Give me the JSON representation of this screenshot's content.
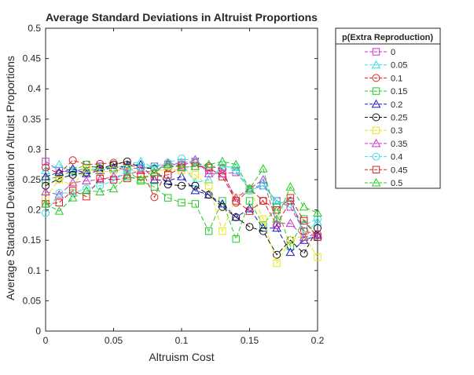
{
  "chart_data": {
    "type": "line",
    "title": "Average Standard Deviations in Altruist Proportions",
    "xlabel": "Altruism Cost",
    "ylabel": "Average Standard Deviation of Altruist Proportions",
    "xlim": [
      0,
      0.2
    ],
    "ylim": [
      0,
      0.5
    ],
    "xticks": [
      "0",
      "0.05",
      "0.1",
      "0.15",
      "0.2"
    ],
    "yticks": [
      "0",
      "0.05",
      "0.1",
      "0.15",
      "0.2",
      "0.25",
      "0.3",
      "0.35",
      "0.4",
      "0.45",
      "0.5"
    ],
    "grid": false,
    "legend": {
      "title": "p(Extra Reproduction)",
      "placement": "outside-right"
    },
    "x": [
      0,
      0.01,
      0.02,
      0.03,
      0.04,
      0.05,
      0.06,
      0.07,
      0.08,
      0.09,
      0.1,
      0.11,
      0.12,
      0.13,
      0.14,
      0.15,
      0.16,
      0.17,
      0.18,
      0.19,
      0.2
    ],
    "series": [
      {
        "name": "0",
        "color": "#cc33cc",
        "marker": "square",
        "values": [
          0.28,
          0.265,
          0.262,
          0.27,
          0.272,
          0.268,
          0.27,
          0.268,
          0.272,
          0.275,
          0.278,
          0.28,
          0.265,
          0.26,
          0.262,
          0.235,
          0.24,
          0.215,
          0.205,
          0.165,
          0.155
        ]
      },
      {
        "name": "0.05",
        "color": "#33e0e0",
        "marker": "triangle",
        "values": [
          0.265,
          0.275,
          0.262,
          0.265,
          0.27,
          0.268,
          0.275,
          0.28,
          0.27,
          0.272,
          0.278,
          0.245,
          0.25,
          0.272,
          0.27,
          0.232,
          0.245,
          0.21,
          0.215,
          0.16,
          0.18
        ]
      },
      {
        "name": "0.1",
        "color": "#dd2222",
        "marker": "circle",
        "values": [
          0.27,
          0.26,
          0.282,
          0.275,
          0.276,
          0.278,
          0.275,
          0.27,
          0.221,
          0.27,
          0.275,
          0.278,
          0.272,
          0.268,
          0.212,
          0.235,
          0.215,
          0.175,
          0.215,
          0.165,
          0.16
        ]
      },
      {
        "name": "0.15",
        "color": "#22cc22",
        "marker": "square",
        "values": [
          0.25,
          0.255,
          0.265,
          0.275,
          0.268,
          0.27,
          0.265,
          0.248,
          0.238,
          0.22,
          0.212,
          0.21,
          0.165,
          0.215,
          0.152,
          0.215,
          0.175,
          0.205,
          0.14,
          0.185,
          0.155
        ]
      },
      {
        "name": "0.2",
        "color": "#1a1acc",
        "marker": "triangle",
        "values": [
          0.255,
          0.262,
          0.268,
          0.26,
          0.265,
          0.27,
          0.272,
          0.275,
          0.25,
          0.248,
          0.255,
          0.232,
          0.225,
          0.21,
          0.188,
          0.202,
          0.17,
          0.17,
          0.13,
          0.15,
          0.158
        ]
      },
      {
        "name": "0.25",
        "color": "#111111",
        "marker": "circle",
        "values": [
          0.24,
          0.252,
          0.258,
          0.262,
          0.268,
          0.275,
          0.28,
          0.27,
          0.268,
          0.242,
          0.24,
          0.24,
          0.225,
          0.205,
          0.188,
          0.172,
          0.165,
          0.126,
          0.15,
          0.128,
          0.17
        ]
      },
      {
        "name": "0.3",
        "color": "#e6e619",
        "marker": "square",
        "values": [
          0.22,
          0.25,
          0.24,
          0.268,
          0.262,
          0.265,
          0.268,
          0.26,
          0.262,
          0.268,
          0.265,
          0.258,
          0.24,
          0.165,
          0.22,
          0.235,
          0.185,
          0.112,
          0.15,
          0.158,
          0.122
        ]
      },
      {
        "name": "0.35",
        "color": "#cc33cc",
        "marker": "triangle",
        "values": [
          0.23,
          0.225,
          0.245,
          0.248,
          0.25,
          0.255,
          0.258,
          0.265,
          0.262,
          0.278,
          0.272,
          0.283,
          0.26,
          0.26,
          0.22,
          0.235,
          0.25,
          0.178,
          0.178,
          0.155,
          0.16
        ]
      },
      {
        "name": "0.4",
        "color": "#33e0e0",
        "marker": "circle",
        "values": [
          0.195,
          0.228,
          0.228,
          0.235,
          0.24,
          0.248,
          0.265,
          0.27,
          0.272,
          0.278,
          0.285,
          0.28,
          0.27,
          0.275,
          0.265,
          0.232,
          0.24,
          0.215,
          0.21,
          0.175,
          0.185
        ]
      },
      {
        "name": "0.45",
        "color": "#dd2222",
        "marker": "square",
        "values": [
          0.21,
          0.212,
          0.232,
          0.222,
          0.252,
          0.25,
          0.252,
          0.255,
          0.255,
          0.258,
          0.27,
          0.272,
          0.27,
          0.255,
          0.215,
          0.198,
          0.215,
          0.2,
          0.22,
          0.182,
          0.155
        ]
      },
      {
        "name": "0.5",
        "color": "#22cc22",
        "marker": "triangle",
        "values": [
          0.21,
          0.198,
          0.22,
          0.232,
          0.23,
          0.235,
          0.255,
          0.25,
          0.262,
          0.275,
          0.27,
          0.272,
          0.275,
          0.28,
          0.275,
          0.235,
          0.268,
          0.185,
          0.238,
          0.205,
          0.195
        ]
      }
    ]
  }
}
